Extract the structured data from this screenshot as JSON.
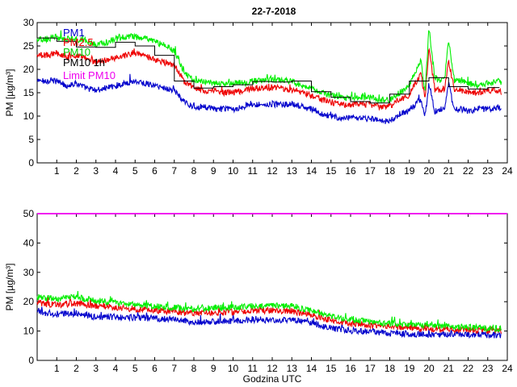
{
  "chart_data": [
    {
      "type": "line",
      "title": "22-7-2018",
      "xlabel": "",
      "ylabel": "PM [µg/m³]",
      "xlim": [
        0,
        24
      ],
      "ylim": [
        0,
        30
      ],
      "xticks": [
        1,
        2,
        3,
        4,
        5,
        6,
        7,
        8,
        9,
        10,
        11,
        12,
        13,
        14,
        15,
        16,
        17,
        18,
        19,
        20,
        21,
        22,
        23,
        24
      ],
      "yticks": [
        0,
        5,
        10,
        15,
        20,
        25,
        30
      ],
      "legend_position": "top-left",
      "legend": [
        "PM1",
        "PM2.5",
        "PM10",
        "PM10 1h",
        "Limit PM10"
      ],
      "series": [
        {
          "name": "PM1",
          "color": "#0000cc",
          "style": "noisy",
          "x": [
            0,
            0.5,
            1,
            1.5,
            2,
            2.5,
            3,
            3.5,
            4,
            4.5,
            5,
            5.5,
            6,
            6.5,
            7,
            7.5,
            8,
            8.5,
            9,
            9.5,
            10,
            10.5,
            11,
            11.5,
            12,
            12.5,
            13,
            13.5,
            14,
            14.5,
            15,
            15.5,
            16,
            16.5,
            17,
            17.5,
            18,
            18.5,
            19,
            19.3,
            19.6,
            19.8,
            20,
            20.3,
            20.6,
            20.8,
            21,
            21.3,
            21.6,
            22,
            22.5,
            23,
            23.5,
            23.7
          ],
          "y": [
            17.5,
            17.5,
            17.5,
            16.5,
            17,
            16,
            15.5,
            16,
            16.5,
            17,
            17.5,
            17,
            16.5,
            16,
            15.5,
            13,
            12,
            12,
            11.5,
            11.5,
            11.5,
            12,
            12.5,
            12.5,
            12.5,
            12.5,
            12.5,
            12,
            11.5,
            10.5,
            10,
            9.5,
            9.5,
            9.5,
            9.5,
            9,
            8.8,
            10.5,
            11,
            12.5,
            13.5,
            9.5,
            17,
            11,
            11.5,
            12,
            17,
            11,
            11.5,
            11,
            11.5,
            11.5,
            12,
            11.5
          ]
        },
        {
          "name": "PM2.5",
          "color": "#ee0000",
          "style": "noisy",
          "x": [
            0,
            0.5,
            1,
            1.5,
            2,
            2.5,
            3,
            3.5,
            4,
            4.5,
            5,
            5.5,
            6,
            6.5,
            7,
            7.5,
            8,
            8.5,
            9,
            9.5,
            10,
            10.5,
            11,
            11.5,
            12,
            12.5,
            13,
            13.5,
            14,
            14.5,
            15,
            15.5,
            16,
            16.5,
            17,
            17.5,
            18,
            18.5,
            19,
            19.3,
            19.6,
            19.8,
            20,
            20.3,
            20.6,
            20.8,
            21,
            21.3,
            21.6,
            22,
            22.5,
            23,
            23.5,
            23.7
          ],
          "y": [
            23,
            23,
            23.5,
            22.5,
            23,
            22.5,
            21.5,
            22,
            22.5,
            23,
            23.5,
            23,
            22,
            21.5,
            21,
            17.5,
            16,
            15.5,
            15.5,
            15,
            15,
            15.5,
            16,
            16,
            16,
            16,
            15.5,
            15,
            14.5,
            13.5,
            13,
            12.5,
            12.5,
            12.5,
            12.5,
            12,
            12,
            13.5,
            14.5,
            17,
            19,
            13.5,
            24.5,
            15.5,
            15.5,
            16,
            22,
            15.5,
            15.5,
            15,
            15,
            15.5,
            15.5,
            15
          ]
        },
        {
          "name": "PM10",
          "color": "#00ee00",
          "style": "noisy",
          "x": [
            0,
            0.5,
            1,
            1.5,
            2,
            2.5,
            3,
            3.5,
            4,
            4.5,
            5,
            5.5,
            6,
            6.5,
            7,
            7.5,
            8,
            8.5,
            9,
            9.5,
            10,
            10.5,
            11,
            11.5,
            12,
            12.5,
            13,
            13.5,
            14,
            14.5,
            15,
            15.5,
            16,
            16.5,
            17,
            17.5,
            18,
            18.5,
            19,
            19.3,
            19.6,
            19.8,
            20,
            20.3,
            20.6,
            20.8,
            21,
            21.3,
            21.6,
            22,
            22.5,
            23,
            23.5,
            23.7
          ],
          "y": [
            26.5,
            26.5,
            27,
            26.5,
            26.5,
            26,
            25.5,
            25.5,
            26.5,
            27,
            27,
            26.5,
            26,
            25,
            24,
            19.5,
            17.5,
            17.5,
            17,
            17,
            17,
            17,
            17.5,
            17.5,
            18,
            17.5,
            17.5,
            16.5,
            16,
            15,
            14.5,
            14,
            14,
            14,
            14,
            13.5,
            13.5,
            15,
            16.5,
            19.5,
            22,
            15,
            29,
            18,
            17.5,
            18,
            26.5,
            17.5,
            17.5,
            17,
            16.5,
            17,
            17.5,
            17
          ]
        },
        {
          "name": "PM10 1h",
          "color": "#000000",
          "style": "step",
          "x": [
            0,
            1,
            2,
            3,
            4,
            5,
            6,
            7,
            8,
            9,
            10,
            11,
            12,
            13,
            14,
            15,
            16,
            17,
            18,
            19,
            20,
            21,
            22,
            23,
            23.6
          ],
          "y": [
            26.7,
            26,
            24.8,
            24.7,
            25.8,
            25,
            23,
            17.5,
            16,
            16.3,
            16.7,
            17.4,
            17.3,
            17.5,
            15.2,
            14,
            13.1,
            12.8,
            14.7,
            17.5,
            18.2,
            16.3,
            15.8,
            16.1,
            16.1
          ]
        }
      ]
    },
    {
      "type": "line",
      "title": "",
      "xlabel": "Godzina UTC",
      "ylabel": "PM [µg/m³]",
      "xlim": [
        0,
        24
      ],
      "ylim": [
        0,
        50
      ],
      "xticks": [
        1,
        2,
        3,
        4,
        5,
        6,
        7,
        8,
        9,
        10,
        11,
        12,
        13,
        14,
        15,
        16,
        17,
        18,
        19,
        20,
        21,
        22,
        23,
        24
      ],
      "yticks": [
        0,
        10,
        20,
        30,
        40,
        50
      ],
      "legend_position": "none",
      "series": [
        {
          "name": "Limit PM10",
          "color": "#ee00ee",
          "style": "flat",
          "x": [
            0,
            24
          ],
          "y": [
            50,
            50
          ]
        },
        {
          "name": "PM1",
          "color": "#0000cc",
          "style": "noisy",
          "x": [
            0,
            1,
            2,
            3,
            4,
            5,
            6,
            7,
            8,
            9,
            10,
            11,
            12,
            13,
            14,
            15,
            16,
            17,
            18,
            19,
            20,
            21,
            22,
            23,
            23.7
          ],
          "y": [
            16.5,
            15.8,
            16,
            14.8,
            14.8,
            14.5,
            14.3,
            13.8,
            13,
            13.3,
            13.5,
            13.8,
            13.8,
            13.8,
            12.8,
            11,
            10.2,
            9.8,
            9.3,
            9,
            8.8,
            8.9,
            8.9,
            8.7,
            8.6
          ]
        },
        {
          "name": "PM2.5",
          "color": "#ee0000",
          "style": "noisy",
          "x": [
            0,
            1,
            2,
            3,
            4,
            5,
            6,
            7,
            8,
            9,
            10,
            11,
            12,
            13,
            14,
            15,
            16,
            17,
            18,
            19,
            20,
            21,
            22,
            23,
            23.7
          ],
          "y": [
            19.5,
            19,
            19.5,
            18.5,
            18,
            17.5,
            17,
            16.5,
            16,
            16.2,
            16.5,
            17,
            17,
            16.8,
            15.5,
            13.5,
            12.5,
            12,
            11.5,
            11,
            10.8,
            10.6,
            10.4,
            10.2,
            10
          ]
        },
        {
          "name": "PM10",
          "color": "#00ee00",
          "style": "noisy",
          "x": [
            0,
            1,
            2,
            3,
            4,
            5,
            6,
            7,
            8,
            9,
            10,
            11,
            12,
            13,
            14,
            15,
            16,
            17,
            18,
            19,
            20,
            21,
            22,
            23,
            23.7
          ],
          "y": [
            21.5,
            21,
            21.5,
            20.5,
            19.5,
            19,
            18.5,
            18,
            17.5,
            17.8,
            18,
            18.5,
            18.5,
            18.5,
            17,
            15,
            13.8,
            13.2,
            12.5,
            12,
            11.8,
            11.5,
            11.2,
            11,
            10.8
          ]
        }
      ]
    }
  ]
}
